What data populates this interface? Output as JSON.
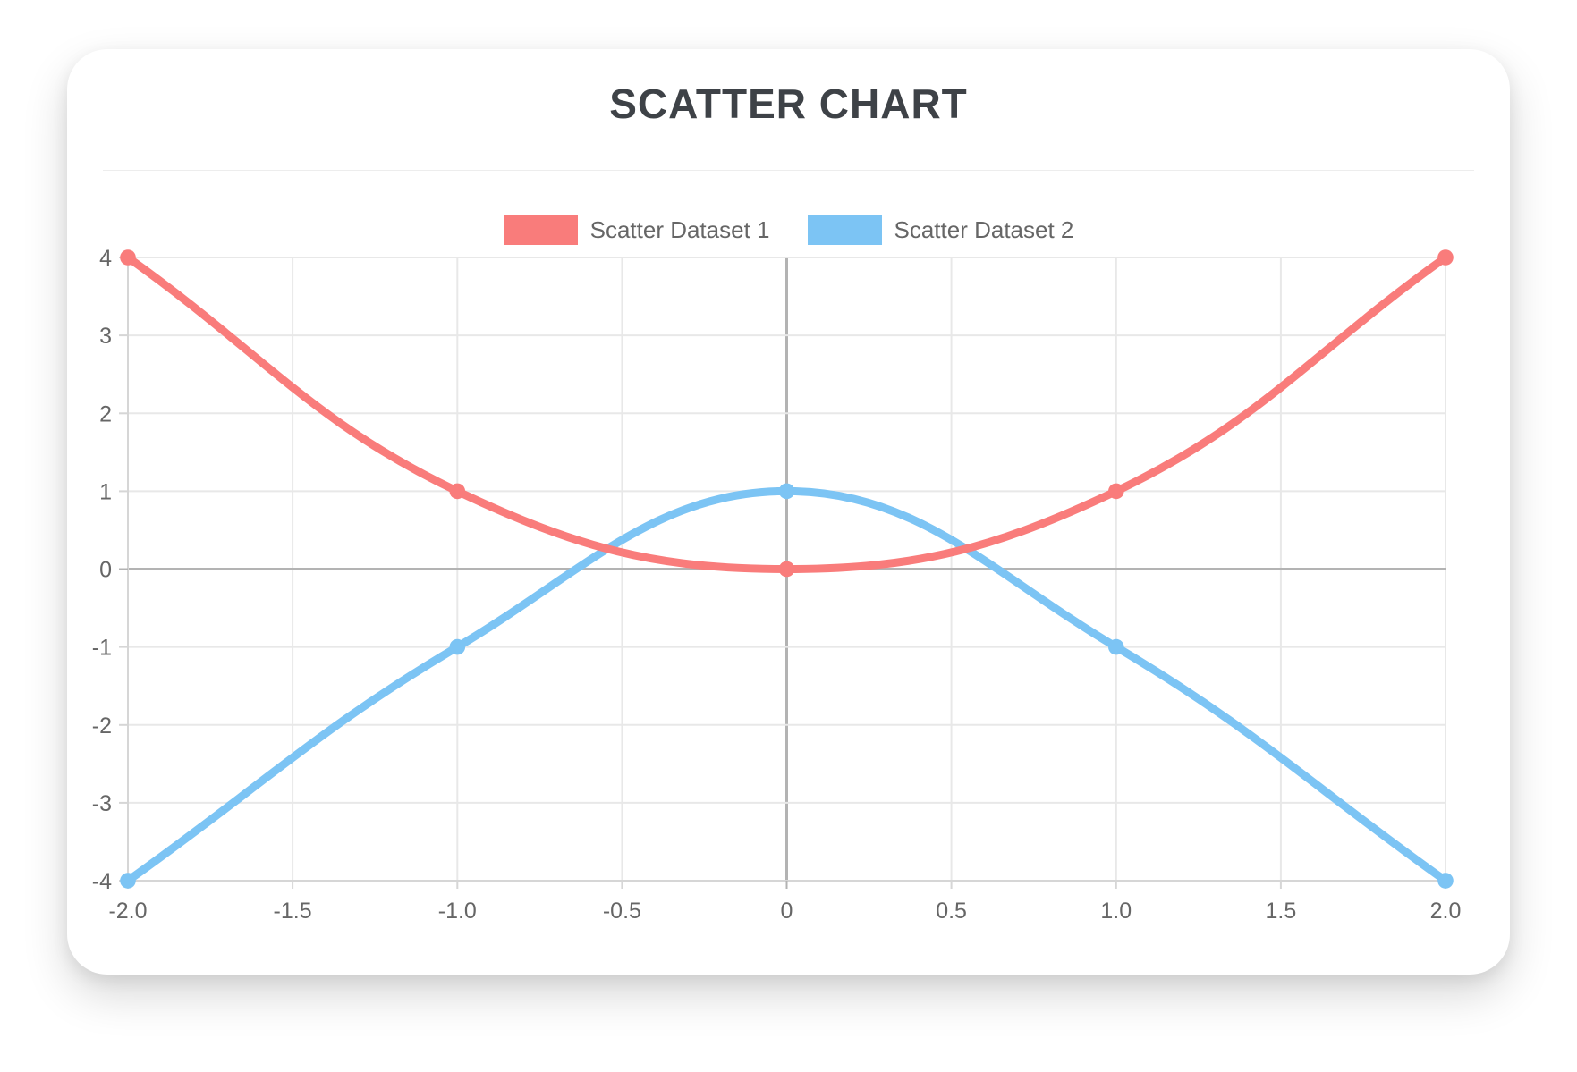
{
  "chart_data": {
    "type": "scatter",
    "title": "SCATTER CHART",
    "xlabel": "",
    "ylabel": "",
    "xlim": [
      -2,
      2
    ],
    "ylim": [
      -4,
      4
    ],
    "grid": true,
    "legend_position": "top",
    "line_tension": 0.4,
    "x_ticks": {
      "values": [
        -2,
        -1.5,
        -1,
        -0.5,
        0,
        0.5,
        1,
        1.5,
        2
      ],
      "labels": [
        "-2.0",
        "-1.5",
        "-1.0",
        "-0.5",
        "0",
        "0.5",
        "1.0",
        "1.5",
        "2.0"
      ]
    },
    "y_ticks": {
      "values": [
        4,
        3,
        2,
        1,
        0,
        -1,
        -2,
        -3,
        -4
      ],
      "labels": [
        "4",
        "3",
        "2",
        "1",
        "0",
        "-1",
        "-2",
        "-3",
        "-4"
      ]
    },
    "series": [
      {
        "name": "Scatter Dataset 1",
        "color": "#F97C7B",
        "points": [
          [
            -2,
            4
          ],
          [
            -1,
            1
          ],
          [
            0,
            0
          ],
          [
            1,
            1
          ],
          [
            2,
            4
          ]
        ]
      },
      {
        "name": "Scatter Dataset 2",
        "color": "#7CC4F4",
        "points": [
          [
            -2,
            -4
          ],
          [
            -1,
            -1
          ],
          [
            0,
            1
          ],
          [
            1,
            -1
          ],
          [
            2,
            -4
          ]
        ]
      }
    ]
  },
  "colors": {
    "title": "#3E4247",
    "tick_label": "#666666",
    "legend_label": "#666666",
    "grid": "#E8E8E8",
    "zero_line": "#B3B3B3",
    "axis_border": "#D6D6D6",
    "divider": "#EDEDED",
    "card_background": "#FFFFFF",
    "page_background": "#FFFFFF"
  }
}
